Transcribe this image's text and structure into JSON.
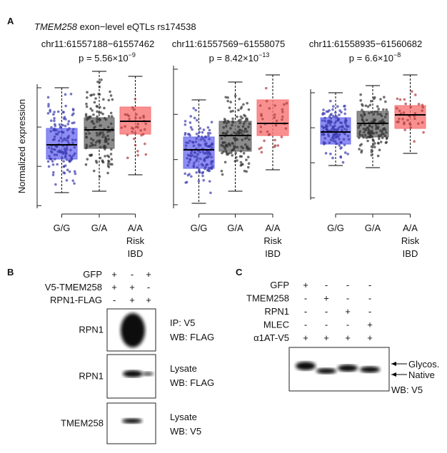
{
  "panel_a": {
    "letter": "A",
    "title_gene": "TMEM258",
    "title_rest": " exon−level eQTLs  rs174538",
    "y_label": "Normalized expression",
    "plots": [
      {
        "region": "chr11:61557188−61557462",
        "p_text": "p = 5.56×10",
        "p_exp": "−9"
      },
      {
        "region": "chr11:61557569−61558075",
        "p_text": "p = 8.42×10",
        "p_exp": "−13"
      },
      {
        "region": "chr11:61558935−61560682",
        "p_text": "p = 6.6×10",
        "p_exp": "−8"
      }
    ],
    "genotypes": [
      [
        "G/G"
      ],
      [
        "G/A"
      ],
      [
        "A/A",
        "Risk",
        "IBD"
      ]
    ]
  },
  "panel_b": {
    "letter": "B",
    "rows": [
      {
        "label": "GFP",
        "signs": [
          "+",
          "-",
          "+"
        ]
      },
      {
        "label": "V5-TMEM258",
        "signs": [
          "+",
          "+",
          "-"
        ]
      },
      {
        "label": "RPN1-FLAG",
        "signs": [
          "-",
          "+",
          "+"
        ]
      }
    ],
    "blots": [
      {
        "protein": "RPN1",
        "notes": [
          "IP: V5",
          "WB: FLAG"
        ]
      },
      {
        "protein": "RPN1",
        "notes": [
          "Lysate",
          "WB: FLAG"
        ]
      },
      {
        "protein": "TMEM258",
        "notes": [
          "Lysate",
          "WB: V5"
        ]
      }
    ]
  },
  "panel_c": {
    "letter": "C",
    "rows": [
      {
        "label": "GFP",
        "signs": [
          "+",
          "-",
          "-",
          "-"
        ]
      },
      {
        "label": "TMEM258",
        "signs": [
          "-",
          "+",
          "-",
          "-"
        ]
      },
      {
        "label": "RPN1",
        "signs": [
          "-",
          "-",
          "+",
          "-"
        ]
      },
      {
        "label": "MLEC",
        "signs": [
          "-",
          "-",
          "-",
          "+"
        ]
      },
      {
        "label": "α1AT-V5",
        "signs": [
          "+",
          "+",
          "+",
          "+"
        ]
      }
    ],
    "band_labels": [
      "Glycos.",
      "Native"
    ],
    "wb": "WB: V5"
  }
}
